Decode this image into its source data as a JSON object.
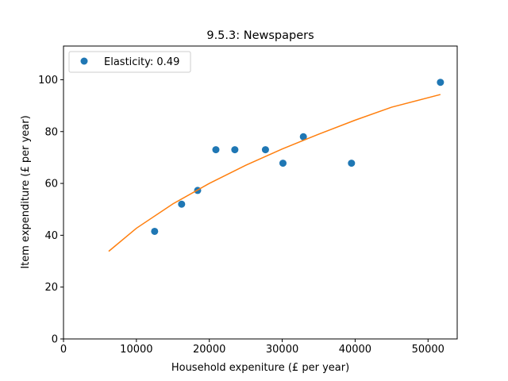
{
  "chart_data": {
    "type": "scatter",
    "title": "9.5.3: Newspapers",
    "xlabel": "Household expeniture (£ per year)",
    "ylabel": "Item expenditure (£ per year)",
    "xlim": [
      0,
      54000
    ],
    "ylim": [
      0,
      113
    ],
    "xticks": [
      0,
      10000,
      20000,
      30000,
      40000,
      50000
    ],
    "yticks": [
      0,
      20,
      40,
      60,
      80,
      100
    ],
    "grid": false,
    "legend_position": "top-left",
    "series": [
      {
        "name": "Elasticity: 0.49",
        "kind": "scatter",
        "color": "#1f77b4",
        "points": [
          [
            12500,
            41.5
          ],
          [
            16200,
            52
          ],
          [
            18400,
            57.3
          ],
          [
            20900,
            73
          ],
          [
            23500,
            73
          ],
          [
            27700,
            73
          ],
          [
            30100,
            67.8
          ],
          [
            32900,
            78
          ],
          [
            39500,
            67.8
          ],
          [
            51700,
            99
          ]
        ]
      },
      {
        "kind": "line",
        "color": "#ff7f0e",
        "points": [
          [
            6200,
            33.8
          ],
          [
            10000,
            42.7
          ],
          [
            15000,
            52.1
          ],
          [
            20000,
            60.0
          ],
          [
            25000,
            67.0
          ],
          [
            30000,
            73.3
          ],
          [
            35000,
            79.0
          ],
          [
            40000,
            84.4
          ],
          [
            45000,
            89.4
          ],
          [
            51700,
            94.3
          ]
        ]
      }
    ]
  }
}
